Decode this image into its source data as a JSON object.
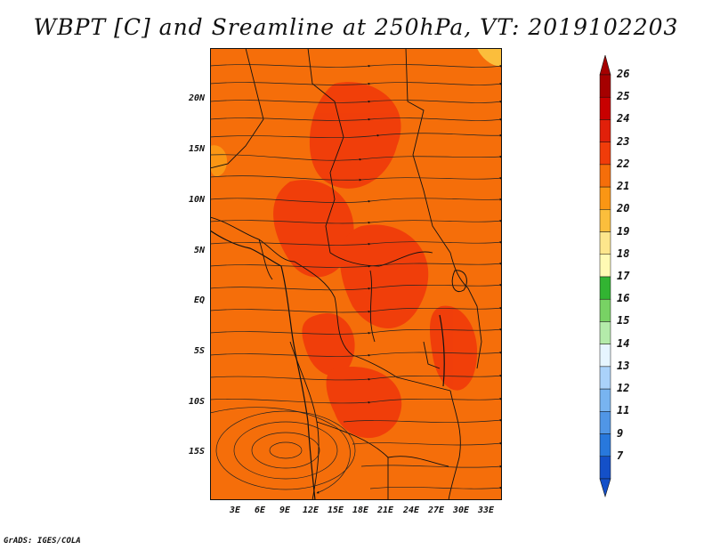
{
  "title": "WBPT [C] and Sreamline at 250hPa, VT: 2019102203",
  "credit": "GrADS: IGES/COLA",
  "map": {
    "lat_labels": [
      "20N",
      "15N",
      "10N",
      "5N",
      "EQ",
      "5S",
      "10S",
      "15S"
    ],
    "lon_labels": [
      "3E",
      "6E",
      "9E",
      "12E",
      "15E",
      "18E",
      "21E",
      "24E",
      "27E",
      "30E",
      "33E"
    ]
  },
  "colorbar": {
    "labels": [
      "26",
      "25",
      "24",
      "23",
      "22",
      "21",
      "20",
      "19",
      "18",
      "17",
      "16",
      "15",
      "14",
      "13",
      "12",
      "11",
      "9",
      "7"
    ],
    "colors": [
      "#a50000",
      "#c80000",
      "#e1200a",
      "#f03c0a",
      "#f56e0a",
      "#fa9614",
      "#fbbe3c",
      "#fde68c",
      "#fffab4",
      "#32b432",
      "#78d264",
      "#b4ebaa",
      "#e6f5ff",
      "#aad2fa",
      "#78b4f0",
      "#5096e6",
      "#2878dc",
      "#1450c8"
    ]
  }
}
